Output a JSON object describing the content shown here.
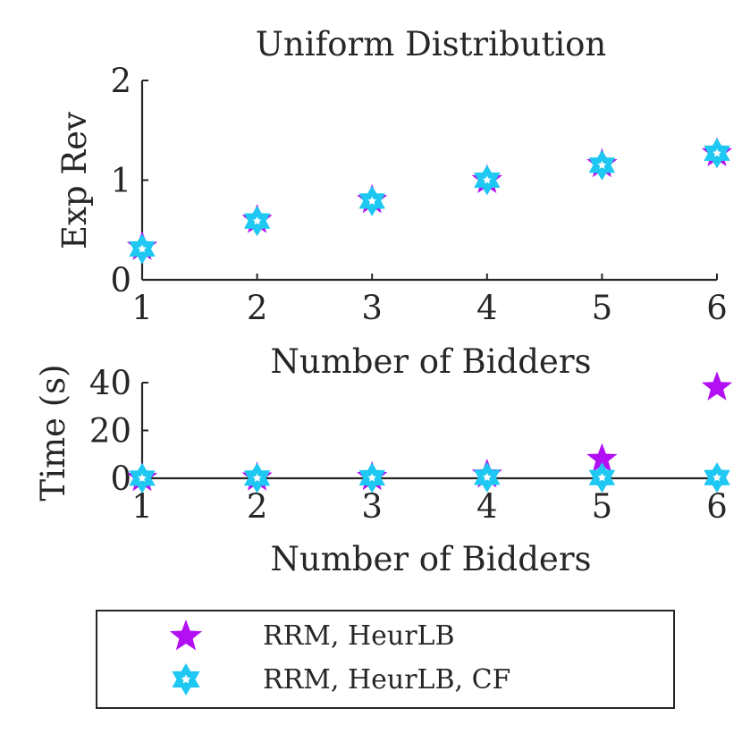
{
  "chart_data": [
    {
      "type": "scatter",
      "title": "Uniform Distribution",
      "xlabel": "Number of Bidders",
      "ylabel": "Exp Rev",
      "xlim": [
        1,
        6
      ],
      "ylim": [
        0,
        2
      ],
      "xticks": [
        "1",
        "2",
        "3",
        "4",
        "5",
        "6"
      ],
      "yticks": [
        "0",
        "1",
        "2"
      ],
      "x": [
        1,
        2,
        3,
        4,
        5,
        6
      ],
      "series": [
        {
          "name": "RRM, HeurLB",
          "values": [
            0.33,
            0.6,
            0.8,
            1.0,
            1.16,
            1.27
          ]
        },
        {
          "name": "RRM, HeurLB, CF",
          "values": [
            0.31,
            0.59,
            0.79,
            1.0,
            1.15,
            1.27
          ]
        }
      ]
    },
    {
      "type": "scatter",
      "title": "",
      "xlabel": "Number of Bidders",
      "ylabel": "Time (s)",
      "xlim": [
        1,
        6
      ],
      "ylim": [
        0,
        40
      ],
      "xticks": [
        "1",
        "2",
        "3",
        "4",
        "5",
        "6"
      ],
      "yticks": [
        "0",
        "20",
        "40"
      ],
      "x": [
        1,
        2,
        3,
        4,
        5,
        6
      ],
      "series": [
        {
          "name": "RRM, HeurLB",
          "values": [
            0.1,
            0.3,
            0.5,
            1.5,
            8,
            38
          ]
        },
        {
          "name": "RRM, HeurLB, CF",
          "values": [
            0.05,
            0.1,
            0.2,
            0.4,
            0.3,
            0.3
          ]
        }
      ]
    }
  ],
  "legend": {
    "placement": "bottom",
    "items": [
      {
        "label": "RRM, HeurLB",
        "color": "#b20ff2",
        "marker": "five-point-star"
      },
      {
        "label": "RRM, HeurLB, CF",
        "color": "#1ec8f2",
        "marker": "six-point-star"
      }
    ]
  },
  "colors": {
    "series1": "#b20ff2",
    "series2": "#1ec8f2",
    "axis": "#262626"
  }
}
